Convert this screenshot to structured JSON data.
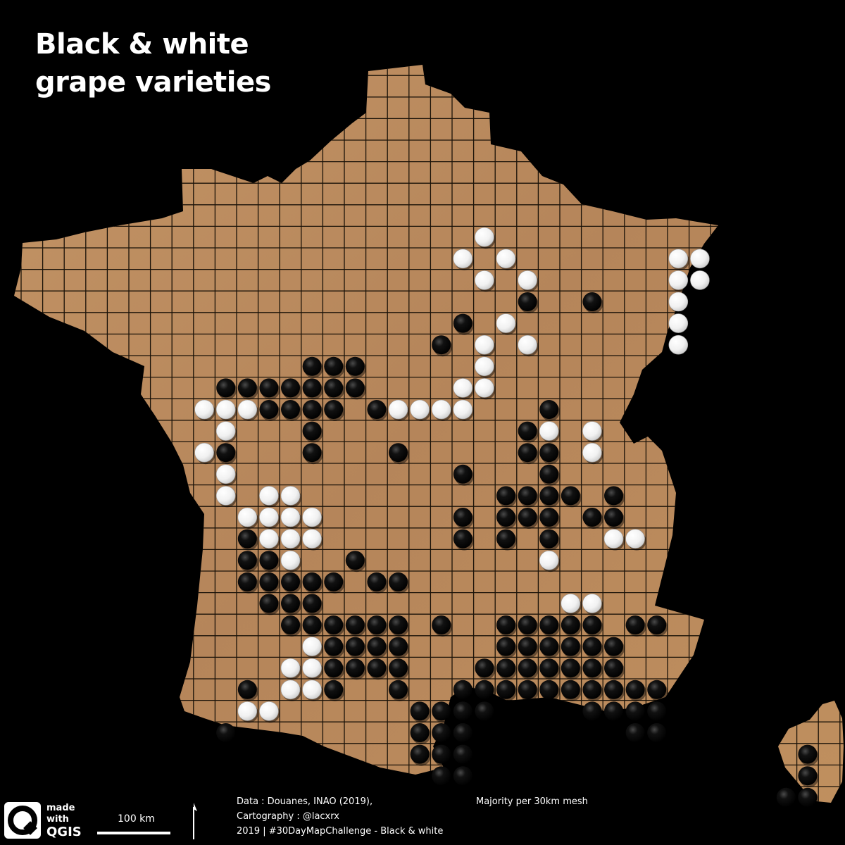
{
  "title": "Black & white grape varieties",
  "map": {
    "board_color": "#b88a5a",
    "grid_color": "#1a1208",
    "black_stone_color": "#000000",
    "white_stone_color": "#f4f4f4",
    "grid_step_km": 30,
    "stones": {
      "black": [
        [
          21,
          9
        ],
        [
          20,
          10
        ],
        [
          21,
          11
        ],
        [
          23,
          12
        ],
        [
          22,
          13
        ],
        [
          20,
          13
        ],
        [
          21,
          14
        ],
        [
          19,
          14
        ],
        [
          26,
          12
        ],
        [
          13,
          15
        ],
        [
          14,
          15
        ],
        [
          15,
          15
        ],
        [
          9,
          16
        ],
        [
          10,
          16
        ],
        [
          11,
          16
        ],
        [
          12,
          16
        ],
        [
          13,
          16
        ],
        [
          14,
          16
        ],
        [
          15,
          16
        ],
        [
          11,
          17
        ],
        [
          12,
          17
        ],
        [
          13,
          17
        ],
        [
          14,
          17
        ],
        [
          16,
          17
        ],
        [
          17,
          17
        ],
        [
          24,
          17
        ],
        [
          13,
          18
        ],
        [
          23,
          18
        ],
        [
          9,
          19
        ],
        [
          13,
          19
        ],
        [
          17,
          19
        ],
        [
          23,
          19
        ],
        [
          24,
          19
        ],
        [
          20,
          20
        ],
        [
          24,
          20
        ],
        [
          22,
          21
        ],
        [
          23,
          21
        ],
        [
          24,
          21
        ],
        [
          25,
          21
        ],
        [
          27,
          21
        ],
        [
          20,
          22
        ],
        [
          22,
          22
        ],
        [
          23,
          22
        ],
        [
          24,
          22
        ],
        [
          26,
          22
        ],
        [
          27,
          22
        ],
        [
          20,
          23
        ],
        [
          22,
          23
        ],
        [
          24,
          23
        ],
        [
          10,
          23
        ],
        [
          10,
          24
        ],
        [
          11,
          24
        ],
        [
          15,
          24
        ],
        [
          10,
          25
        ],
        [
          11,
          25
        ],
        [
          12,
          25
        ],
        [
          13,
          25
        ],
        [
          14,
          25
        ],
        [
          16,
          25
        ],
        [
          17,
          25
        ],
        [
          11,
          26
        ],
        [
          12,
          26
        ],
        [
          13,
          26
        ],
        [
          12,
          27
        ],
        [
          13,
          27
        ],
        [
          14,
          27
        ],
        [
          15,
          27
        ],
        [
          16,
          27
        ],
        [
          17,
          27
        ],
        [
          19,
          27
        ],
        [
          22,
          27
        ],
        [
          23,
          27
        ],
        [
          24,
          27
        ],
        [
          25,
          27
        ],
        [
          26,
          27
        ],
        [
          28,
          27
        ],
        [
          29,
          27
        ],
        [
          14,
          28
        ],
        [
          15,
          28
        ],
        [
          16,
          28
        ],
        [
          17,
          28
        ],
        [
          22,
          28
        ],
        [
          23,
          28
        ],
        [
          24,
          28
        ],
        [
          25,
          28
        ],
        [
          26,
          28
        ],
        [
          27,
          28
        ],
        [
          14,
          29
        ],
        [
          15,
          29
        ],
        [
          16,
          29
        ],
        [
          17,
          29
        ],
        [
          21,
          29
        ],
        [
          22,
          29
        ],
        [
          23,
          29
        ],
        [
          24,
          29
        ],
        [
          25,
          29
        ],
        [
          26,
          29
        ],
        [
          27,
          29
        ],
        [
          10,
          30
        ],
        [
          14,
          30
        ],
        [
          17,
          30
        ],
        [
          20,
          30
        ],
        [
          21,
          30
        ],
        [
          22,
          30
        ],
        [
          23,
          30
        ],
        [
          24,
          30
        ],
        [
          25,
          30
        ],
        [
          26,
          30
        ],
        [
          27,
          30
        ],
        [
          28,
          30
        ],
        [
          29,
          30
        ],
        [
          18,
          31
        ],
        [
          19,
          31
        ],
        [
          20,
          31
        ],
        [
          21,
          31
        ],
        [
          26,
          31
        ],
        [
          27,
          31
        ],
        [
          28,
          31
        ],
        [
          29,
          31
        ],
        [
          9,
          32
        ],
        [
          18,
          32
        ],
        [
          19,
          32
        ],
        [
          20,
          32
        ],
        [
          28,
          32
        ],
        [
          29,
          32
        ],
        [
          18,
          33
        ],
        [
          19,
          33
        ],
        [
          20,
          33
        ],
        [
          19,
          34
        ],
        [
          20,
          34
        ],
        [
          36,
          33
        ],
        [
          36,
          34
        ],
        [
          35,
          35
        ],
        [
          36,
          35
        ]
      ],
      "white": [
        [
          21,
          9
        ],
        [
          20,
          10
        ],
        [
          22,
          10
        ],
        [
          21,
          11
        ],
        [
          23,
          11
        ],
        [
          30,
          10
        ],
        [
          31,
          10
        ],
        [
          30,
          11
        ],
        [
          31,
          11
        ],
        [
          30,
          12
        ],
        [
          30,
          13
        ],
        [
          30,
          14
        ],
        [
          22,
          13
        ],
        [
          21,
          14
        ],
        [
          23,
          14
        ],
        [
          21,
          15
        ],
        [
          21,
          16
        ],
        [
          20,
          16
        ],
        [
          8,
          17
        ],
        [
          9,
          17
        ],
        [
          10,
          17
        ],
        [
          17,
          17
        ],
        [
          18,
          17
        ],
        [
          19,
          17
        ],
        [
          20,
          17
        ],
        [
          9,
          18
        ],
        [
          8,
          19
        ],
        [
          24,
          18
        ],
        [
          26,
          18
        ],
        [
          26,
          19
        ],
        [
          9,
          20
        ],
        [
          9,
          21
        ],
        [
          11,
          21
        ],
        [
          12,
          21
        ],
        [
          10,
          22
        ],
        [
          11,
          22
        ],
        [
          12,
          22
        ],
        [
          13,
          22
        ],
        [
          11,
          23
        ],
        [
          12,
          23
        ],
        [
          13,
          23
        ],
        [
          27,
          23
        ],
        [
          28,
          23
        ],
        [
          12,
          24
        ],
        [
          24,
          24
        ],
        [
          25,
          26
        ],
        [
          26,
          26
        ],
        [
          13,
          28
        ],
        [
          12,
          29
        ],
        [
          13,
          29
        ],
        [
          12,
          30
        ],
        [
          13,
          30
        ],
        [
          10,
          31
        ],
        [
          11,
          31
        ]
      ]
    }
  },
  "scale": {
    "label": "100 km"
  },
  "logo": {
    "line1": "made",
    "line2": "with",
    "line3": "QGIS"
  },
  "credits": {
    "data": "Data : Douanes, INAO (2019),",
    "cartography": "Cartography :  @lacxrx",
    "challenge": "2019 | #30DayMapChallenge -  Black & white",
    "method": "Majority per 30km mesh"
  }
}
